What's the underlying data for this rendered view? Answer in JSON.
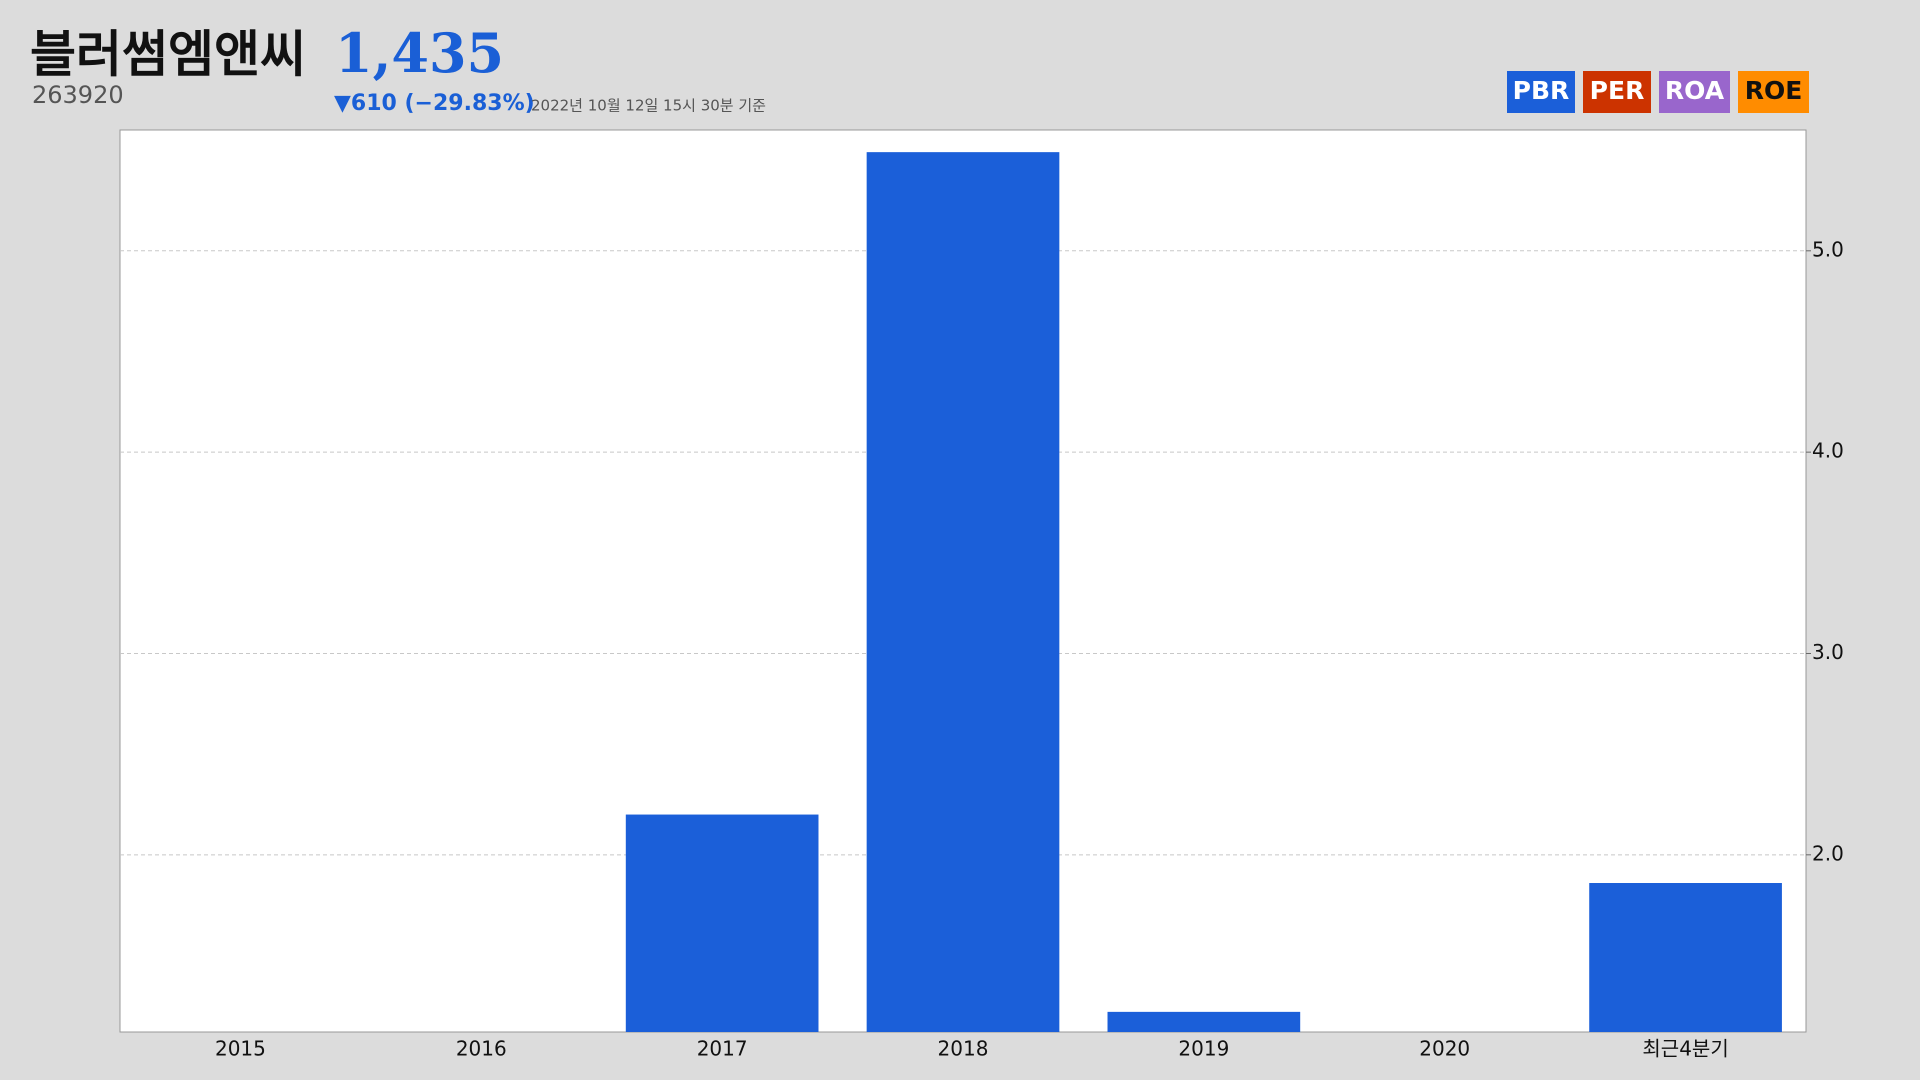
{
  "header": {
    "title": "블러썸엠앤씨",
    "price": "1,435",
    "code": "263920",
    "change": "▼610 (−29.83%)",
    "timestamp": "2022년 10월 12일 15시 30분 기준"
  },
  "tabs": [
    {
      "label": "PER",
      "color": "#cc3300"
    },
    {
      "label": "ROA",
      "color": "#9966cc"
    },
    {
      "label": "ROE",
      "color": "#ff8c00"
    }
  ],
  "chart_data": {
    "type": "bar",
    "categories": [
      "2015",
      "2016",
      "2017",
      "2018",
      "2019",
      "2020",
      "최근4분기"
    ],
    "series": [
      {
        "name": "PBR",
        "color": "#1b5fd9",
        "values": [
          null,
          null,
          2.2,
          5.49,
          1.22,
          null,
          1.86
        ]
      }
    ],
    "ylim": [
      1.12,
      5.6
    ],
    "yticks": [
      {
        "value": 2,
        "label": "2.0"
      },
      {
        "value": 3,
        "label": "3.0"
      },
      {
        "value": 4,
        "label": "4.0"
      },
      {
        "value": 5,
        "label": "5.0"
      }
    ],
    "grid": true
  }
}
